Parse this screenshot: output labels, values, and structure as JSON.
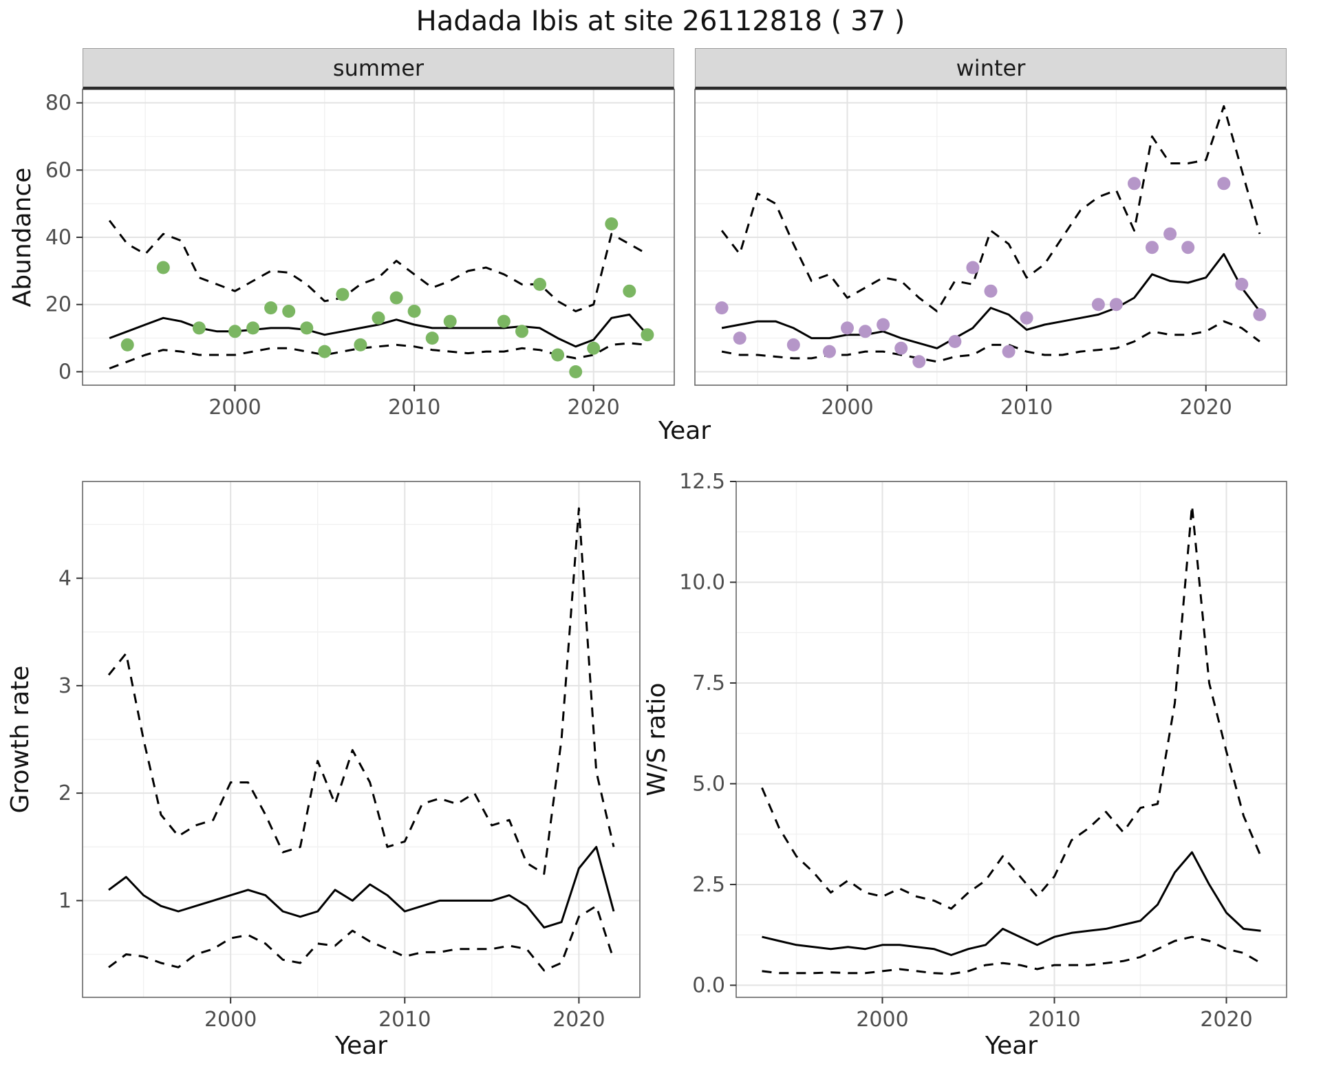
{
  "title": "Hadada Ibis at site 26112818 ( 37 )",
  "colors": {
    "summer_points": "#7bb662",
    "winter_points": "#b596c8",
    "line": "#000000",
    "strip_bg": "#d9d9d9",
    "grid_major": "#e3e3e3",
    "grid_minor": "#f1f1f1",
    "panel_border": "#666666",
    "axis_text": "#4d4d4d",
    "tick": "#333333"
  },
  "abundance": {
    "ylabel": "Abundance",
    "xlabel": "Year",
    "facets": [
      {
        "label": "summer"
      },
      {
        "label": "winter"
      }
    ]
  },
  "growth": {
    "ylabel": "Growth rate",
    "xlabel": "Year"
  },
  "ws": {
    "ylabel": "W/S ratio",
    "xlabel": "Year"
  },
  "chart_data": [
    {
      "id": "abundance-summer",
      "type": "line",
      "facet": "summer",
      "title": "",
      "xlabel": "Year",
      "ylabel": "Abundance",
      "xlim": [
        1991.5,
        2024.5
      ],
      "ylim": [
        -4,
        84
      ],
      "x_ticks": [
        2000,
        2010,
        2020
      ],
      "x_tick_labels": [
        "2000",
        "2010",
        "2020"
      ],
      "x_minor": [
        1995,
        2005,
        2015
      ],
      "y_ticks": [
        0,
        20,
        40,
        60,
        80
      ],
      "y_tick_labels": [
        "0",
        "20",
        "40",
        "60",
        "80"
      ],
      "y_minor": [
        10,
        30,
        50,
        70
      ],
      "x": [
        1993,
        1994,
        1995,
        1996,
        1997,
        1998,
        1999,
        2000,
        2001,
        2002,
        2003,
        2004,
        2005,
        2006,
        2007,
        2008,
        2009,
        2010,
        2011,
        2012,
        2013,
        2014,
        2015,
        2016,
        2017,
        2018,
        2019,
        2020,
        2021,
        2022,
        2023
      ],
      "series": [
        {
          "name": "estimate",
          "style": "solid",
          "values": [
            10,
            12,
            14,
            16,
            15,
            13,
            12,
            12,
            12.5,
            13,
            13,
            12.5,
            11,
            12,
            13,
            14,
            15.5,
            14,
            13,
            13,
            13,
            13,
            13,
            13.5,
            13,
            10,
            7.5,
            9.5,
            16,
            17,
            11
          ]
        },
        {
          "name": "upper-ci",
          "style": "dashed",
          "values": [
            45,
            38,
            35,
            41,
            39,
            28,
            26,
            24,
            27,
            30,
            29.5,
            26,
            21,
            22,
            26,
            28,
            33,
            29,
            25,
            27,
            30,
            31,
            29,
            26,
            26,
            21,
            18,
            20,
            41,
            38,
            35
          ]
        },
        {
          "name": "lower-ci",
          "style": "dashed",
          "values": [
            1,
            3,
            5,
            6.5,
            6,
            5,
            5,
            5,
            6,
            7,
            7,
            6,
            5,
            6,
            7,
            7.5,
            8,
            7.5,
            6.5,
            6,
            5.5,
            6,
            6,
            7,
            6.5,
            5,
            4,
            5,
            8,
            8.5,
            8
          ]
        }
      ],
      "points": {
        "name": "observed-summer",
        "color_key": "summer_points",
        "x": [
          1994,
          1996,
          1998,
          2000,
          2001,
          2002,
          2003,
          2004,
          2005,
          2006,
          2007,
          2008,
          2009,
          2010,
          2011,
          2012,
          2015,
          2016,
          2017,
          2018,
          2019,
          2020,
          2021,
          2022,
          2023
        ],
        "y": [
          8,
          31,
          13,
          12,
          13,
          19,
          18,
          13,
          6,
          23,
          8,
          16,
          22,
          18,
          10,
          15,
          15,
          12,
          26,
          5,
          0,
          7,
          44,
          24,
          11
        ]
      }
    },
    {
      "id": "abundance-winter",
      "type": "line",
      "facet": "winter",
      "title": "",
      "xlabel": "Year",
      "ylabel": "Abundance",
      "xlim": [
        1991.5,
        2024.5
      ],
      "ylim": [
        -4,
        84
      ],
      "x_ticks": [
        2000,
        2010,
        2020
      ],
      "x_tick_labels": [
        "2000",
        "2010",
        "2020"
      ],
      "x_minor": [
        1995,
        2005,
        2015
      ],
      "y_ticks": [
        0,
        20,
        40,
        60,
        80
      ],
      "y_tick_labels": [
        "0",
        "20",
        "40",
        "60",
        "80"
      ],
      "y_minor": [
        10,
        30,
        50,
        70
      ],
      "x": [
        1993,
        1994,
        1995,
        1996,
        1997,
        1998,
        1999,
        2000,
        2001,
        2002,
        2003,
        2004,
        2005,
        2006,
        2007,
        2008,
        2009,
        2010,
        2011,
        2012,
        2013,
        2014,
        2015,
        2016,
        2017,
        2018,
        2019,
        2020,
        2021,
        2022,
        2023
      ],
      "series": [
        {
          "name": "estimate",
          "style": "solid",
          "values": [
            13,
            14,
            15,
            15,
            13,
            10,
            10,
            11,
            11,
            12,
            10,
            8.5,
            7,
            10,
            13,
            19,
            17,
            12.5,
            14,
            15,
            16,
            17,
            19,
            22,
            29,
            27,
            26.5,
            28,
            35,
            25,
            18
          ]
        },
        {
          "name": "upper-ci",
          "style": "dashed",
          "values": [
            42,
            35,
            53,
            50,
            38,
            27,
            29,
            22,
            25,
            28,
            27,
            22,
            18,
            27,
            26,
            42,
            38,
            28,
            32,
            40,
            48,
            52,
            54,
            42,
            70,
            62,
            62,
            63,
            79,
            60,
            41
          ]
        },
        {
          "name": "lower-ci",
          "style": "dashed",
          "values": [
            6,
            5,
            5,
            4.5,
            4,
            4,
            5,
            5,
            6,
            6,
            5,
            4,
            3,
            4.5,
            5,
            8,
            8,
            6,
            5,
            5,
            6,
            6.5,
            7,
            9,
            12,
            11,
            11,
            12,
            15,
            13,
            9
          ]
        }
      ],
      "points": {
        "name": "observed-winter",
        "color_key": "winter_points",
        "x": [
          1993,
          1994,
          1997,
          1999,
          2000,
          2001,
          2002,
          2003,
          2004,
          2006,
          2007,
          2008,
          2009,
          2010,
          2014,
          2015,
          2016,
          2017,
          2018,
          2019,
          2021,
          2022,
          2023
        ],
        "y": [
          19,
          10,
          8,
          6,
          13,
          12,
          14,
          7,
          3,
          9,
          31,
          24,
          6,
          16,
          20,
          20,
          56,
          37,
          41,
          37,
          56,
          26,
          17
        ]
      }
    },
    {
      "id": "growth-rate",
      "type": "line",
      "title": "",
      "xlabel": "Year",
      "ylabel": "Growth rate",
      "xlim": [
        1991.5,
        2023.5
      ],
      "ylim": [
        0.1,
        4.9
      ],
      "x_ticks": [
        2000,
        2010,
        2020
      ],
      "x_tick_labels": [
        "2000",
        "2010",
        "2020"
      ],
      "x_minor": [
        1995,
        2005,
        2015
      ],
      "y_ticks": [
        1,
        2,
        3,
        4
      ],
      "y_tick_labels": [
        "1",
        "2",
        "3",
        "4"
      ],
      "y_minor": [
        0.5,
        1.5,
        2.5,
        3.5,
        4.5
      ],
      "x": [
        1993,
        1994,
        1995,
        1996,
        1997,
        1998,
        1999,
        2000,
        2001,
        2002,
        2003,
        2004,
        2005,
        2006,
        2007,
        2008,
        2009,
        2010,
        2011,
        2012,
        2013,
        2014,
        2015,
        2016,
        2017,
        2018,
        2019,
        2020,
        2021,
        2022
      ],
      "series": [
        {
          "name": "estimate",
          "style": "solid",
          "values": [
            1.1,
            1.22,
            1.05,
            0.95,
            0.9,
            0.95,
            1.0,
            1.05,
            1.1,
            1.05,
            0.9,
            0.85,
            0.9,
            1.1,
            1.0,
            1.15,
            1.05,
            0.9,
            0.95,
            1.0,
            1.0,
            1.0,
            1.0,
            1.05,
            0.95,
            0.75,
            0.8,
            1.3,
            1.5,
            0.9
          ]
        },
        {
          "name": "upper-ci",
          "style": "dashed",
          "values": [
            3.1,
            3.3,
            2.5,
            1.8,
            1.6,
            1.7,
            1.75,
            2.1,
            2.1,
            1.8,
            1.45,
            1.5,
            2.3,
            1.9,
            2.4,
            2.1,
            1.5,
            1.55,
            1.9,
            1.95,
            1.9,
            2.0,
            1.7,
            1.75,
            1.35,
            1.25,
            2.5,
            4.65,
            2.2,
            1.5
          ]
        },
        {
          "name": "lower-ci",
          "style": "dashed",
          "values": [
            0.38,
            0.5,
            0.48,
            0.42,
            0.38,
            0.5,
            0.55,
            0.65,
            0.68,
            0.6,
            0.45,
            0.42,
            0.6,
            0.58,
            0.72,
            0.62,
            0.55,
            0.48,
            0.52,
            0.52,
            0.55,
            0.55,
            0.55,
            0.58,
            0.55,
            0.35,
            0.42,
            0.85,
            0.95,
            0.45
          ]
        }
      ]
    },
    {
      "id": "ws-ratio",
      "type": "line",
      "title": "",
      "xlabel": "Year",
      "ylabel": "W/S ratio",
      "xlim": [
        1991.5,
        2023.5
      ],
      "ylim": [
        -0.3,
        12.5
      ],
      "x_ticks": [
        2000,
        2010,
        2020
      ],
      "x_tick_labels": [
        "2000",
        "2010",
        "2020"
      ],
      "x_minor": [
        1995,
        2005,
        2015
      ],
      "y_ticks": [
        0,
        2.5,
        5,
        7.5,
        10,
        12.5
      ],
      "y_tick_labels": [
        "0.0",
        "2.5",
        "5.0",
        "7.5",
        "10.0",
        "12.5"
      ],
      "y_minor": [
        1.25,
        3.75,
        6.25,
        8.75,
        11.25
      ],
      "x": [
        1993,
        1994,
        1995,
        1996,
        1997,
        1998,
        1999,
        2000,
        2001,
        2002,
        2003,
        2004,
        2005,
        2006,
        2007,
        2008,
        2009,
        2010,
        2011,
        2012,
        2013,
        2014,
        2015,
        2016,
        2017,
        2018,
        2019,
        2020,
        2021,
        2022
      ],
      "series": [
        {
          "name": "estimate",
          "style": "solid",
          "values": [
            1.2,
            1.1,
            1.0,
            0.95,
            0.9,
            0.95,
            0.9,
            1.0,
            1.0,
            0.95,
            0.9,
            0.75,
            0.9,
            1.0,
            1.4,
            1.2,
            1.0,
            1.2,
            1.3,
            1.35,
            1.4,
            1.5,
            1.6,
            2.0,
            2.8,
            3.3,
            2.5,
            1.8,
            1.4,
            1.35
          ]
        },
        {
          "name": "upper-ci",
          "style": "dashed",
          "values": [
            4.9,
            3.9,
            3.2,
            2.8,
            2.3,
            2.6,
            2.3,
            2.2,
            2.4,
            2.2,
            2.1,
            1.9,
            2.3,
            2.6,
            3.2,
            2.7,
            2.2,
            2.7,
            3.6,
            3.9,
            4.3,
            3.8,
            4.4,
            4.5,
            7.0,
            11.9,
            7.5,
            5.8,
            4.2,
            3.2
          ]
        },
        {
          "name": "lower-ci",
          "style": "dashed",
          "values": [
            0.35,
            0.3,
            0.3,
            0.3,
            0.32,
            0.3,
            0.3,
            0.35,
            0.4,
            0.35,
            0.3,
            0.28,
            0.35,
            0.5,
            0.55,
            0.5,
            0.4,
            0.5,
            0.5,
            0.5,
            0.55,
            0.6,
            0.7,
            0.9,
            1.1,
            1.2,
            1.1,
            0.9,
            0.8,
            0.55
          ]
        }
      ]
    }
  ]
}
